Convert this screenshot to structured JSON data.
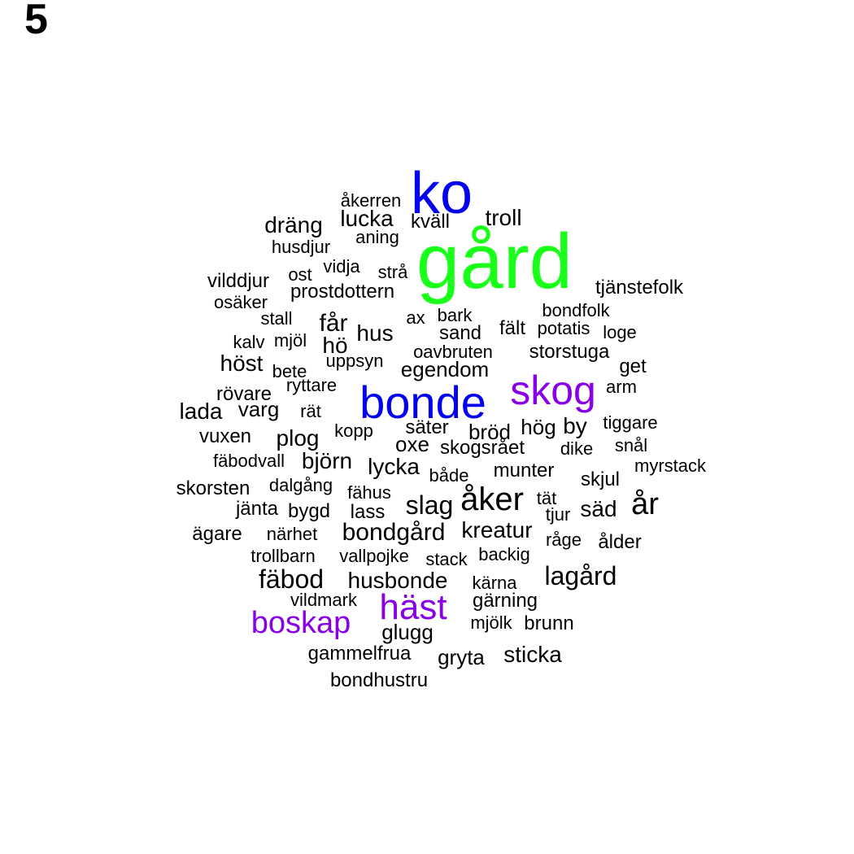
{
  "panel_label": "5",
  "colors": {
    "default": "#000000",
    "green": "#1aff1a",
    "blue": "#0000ee",
    "purple": "#8a00e6"
  },
  "words": [
    {
      "text": "gård",
      "color": "#1aff1a"
    },
    {
      "text": "ko",
      "color": "#0000ee"
    },
    {
      "text": "bonde",
      "color": "#0000ee"
    },
    {
      "text": "skog",
      "color": "#8a00e6"
    },
    {
      "text": "häst",
      "color": "#8a00e6"
    },
    {
      "text": "boskap",
      "color": "#8a00e6"
    },
    {
      "text": "åkerren"
    },
    {
      "text": "dräng"
    },
    {
      "text": "lucka"
    },
    {
      "text": "kväll"
    },
    {
      "text": "troll"
    },
    {
      "text": "aning"
    },
    {
      "text": "husdjur"
    },
    {
      "text": "vidja"
    },
    {
      "text": "strå"
    },
    {
      "text": "vilddjur"
    },
    {
      "text": "ost"
    },
    {
      "text": "prostdottern"
    },
    {
      "text": "tjänstefolk"
    },
    {
      "text": "osäker"
    },
    {
      "text": "bondfolk"
    },
    {
      "text": "stall"
    },
    {
      "text": "får"
    },
    {
      "text": "ax"
    },
    {
      "text": "bark"
    },
    {
      "text": "hus"
    },
    {
      "text": "sand"
    },
    {
      "text": "fält"
    },
    {
      "text": "potatis"
    },
    {
      "text": "loge"
    },
    {
      "text": "kalv"
    },
    {
      "text": "mjöl"
    },
    {
      "text": "hö"
    },
    {
      "text": "oavbruten"
    },
    {
      "text": "storstuga"
    },
    {
      "text": "höst"
    },
    {
      "text": "uppsyn"
    },
    {
      "text": "bete"
    },
    {
      "text": "egendom"
    },
    {
      "text": "get"
    },
    {
      "text": "rövare"
    },
    {
      "text": "ryttare"
    },
    {
      "text": "arm"
    },
    {
      "text": "lada"
    },
    {
      "text": "varg"
    },
    {
      "text": "rät"
    },
    {
      "text": "säter"
    },
    {
      "text": "bröd"
    },
    {
      "text": "hög"
    },
    {
      "text": "by"
    },
    {
      "text": "tiggare"
    },
    {
      "text": "vuxen"
    },
    {
      "text": "plog"
    },
    {
      "text": "kopp"
    },
    {
      "text": "oxe"
    },
    {
      "text": "skogsrået"
    },
    {
      "text": "dike"
    },
    {
      "text": "snål"
    },
    {
      "text": "fäbodvall"
    },
    {
      "text": "björn"
    },
    {
      "text": "lycka"
    },
    {
      "text": "både"
    },
    {
      "text": "munter"
    },
    {
      "text": "myrstack"
    },
    {
      "text": "skjul"
    },
    {
      "text": "skorsten"
    },
    {
      "text": "dalgång"
    },
    {
      "text": "fähus"
    },
    {
      "text": "slag"
    },
    {
      "text": "åker"
    },
    {
      "text": "tät"
    },
    {
      "text": "år"
    },
    {
      "text": "jänta"
    },
    {
      "text": "bygd"
    },
    {
      "text": "lass"
    },
    {
      "text": "tjur"
    },
    {
      "text": "säd"
    },
    {
      "text": "ägare"
    },
    {
      "text": "närhet"
    },
    {
      "text": "bondgård"
    },
    {
      "text": "kreatur"
    },
    {
      "text": "råge"
    },
    {
      "text": "ålder"
    },
    {
      "text": "trollbarn"
    },
    {
      "text": "vallpojke"
    },
    {
      "text": "stack"
    },
    {
      "text": "backig"
    },
    {
      "text": "fäbod"
    },
    {
      "text": "husbonde"
    },
    {
      "text": "lagård"
    },
    {
      "text": "kärna"
    },
    {
      "text": "vildmark"
    },
    {
      "text": "gärning"
    },
    {
      "text": "mjölk"
    },
    {
      "text": "brunn"
    },
    {
      "text": "glugg"
    },
    {
      "text": "gammelfrua"
    },
    {
      "text": "gryta"
    },
    {
      "text": "sticka"
    },
    {
      "text": "bondhustru"
    }
  ]
}
